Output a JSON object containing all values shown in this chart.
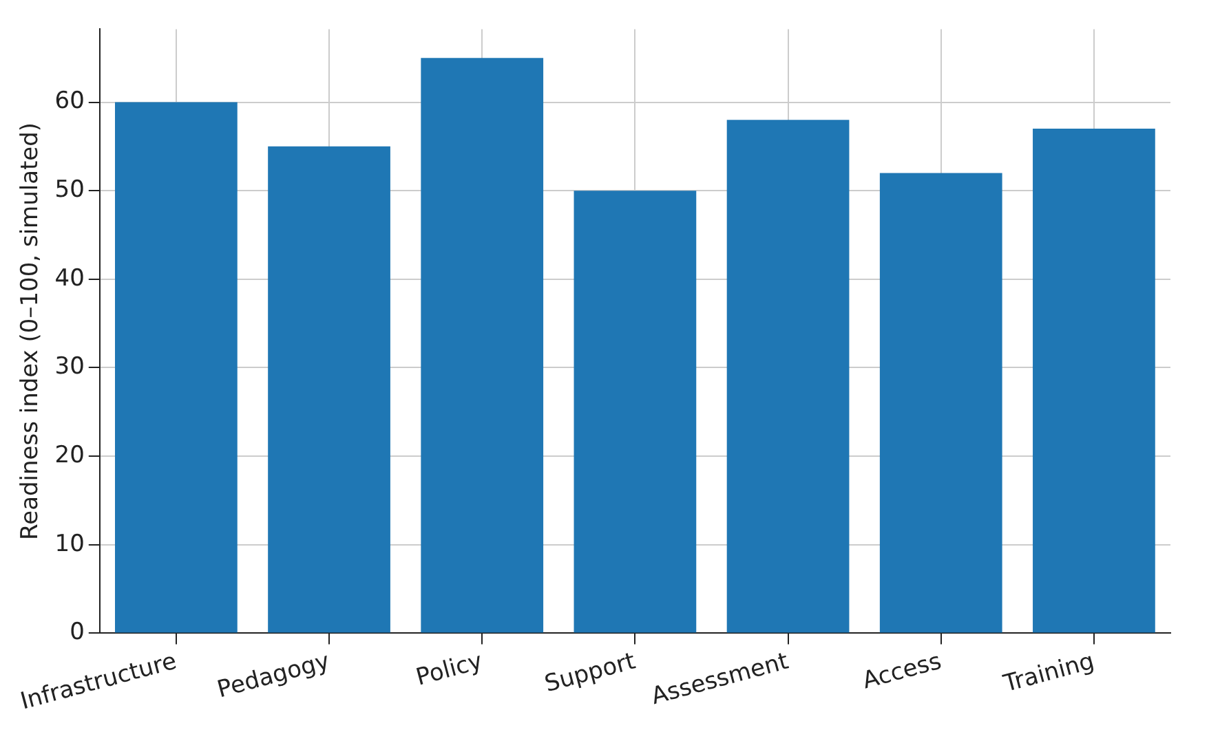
{
  "chart_data": {
    "type": "bar",
    "ylabel": "Readiness index (0–100, simulated)",
    "categories": [
      "Infrastructure",
      "Pedagogy",
      "Policy",
      "Support",
      "Assessment",
      "Access",
      "Training"
    ],
    "values": [
      60,
      55,
      65,
      50,
      58,
      52,
      57
    ],
    "color": "#1f77b4",
    "ylim": [
      0,
      68.25
    ],
    "yticks": [
      0,
      10,
      20,
      30,
      40,
      50,
      60
    ],
    "grid": true
  }
}
